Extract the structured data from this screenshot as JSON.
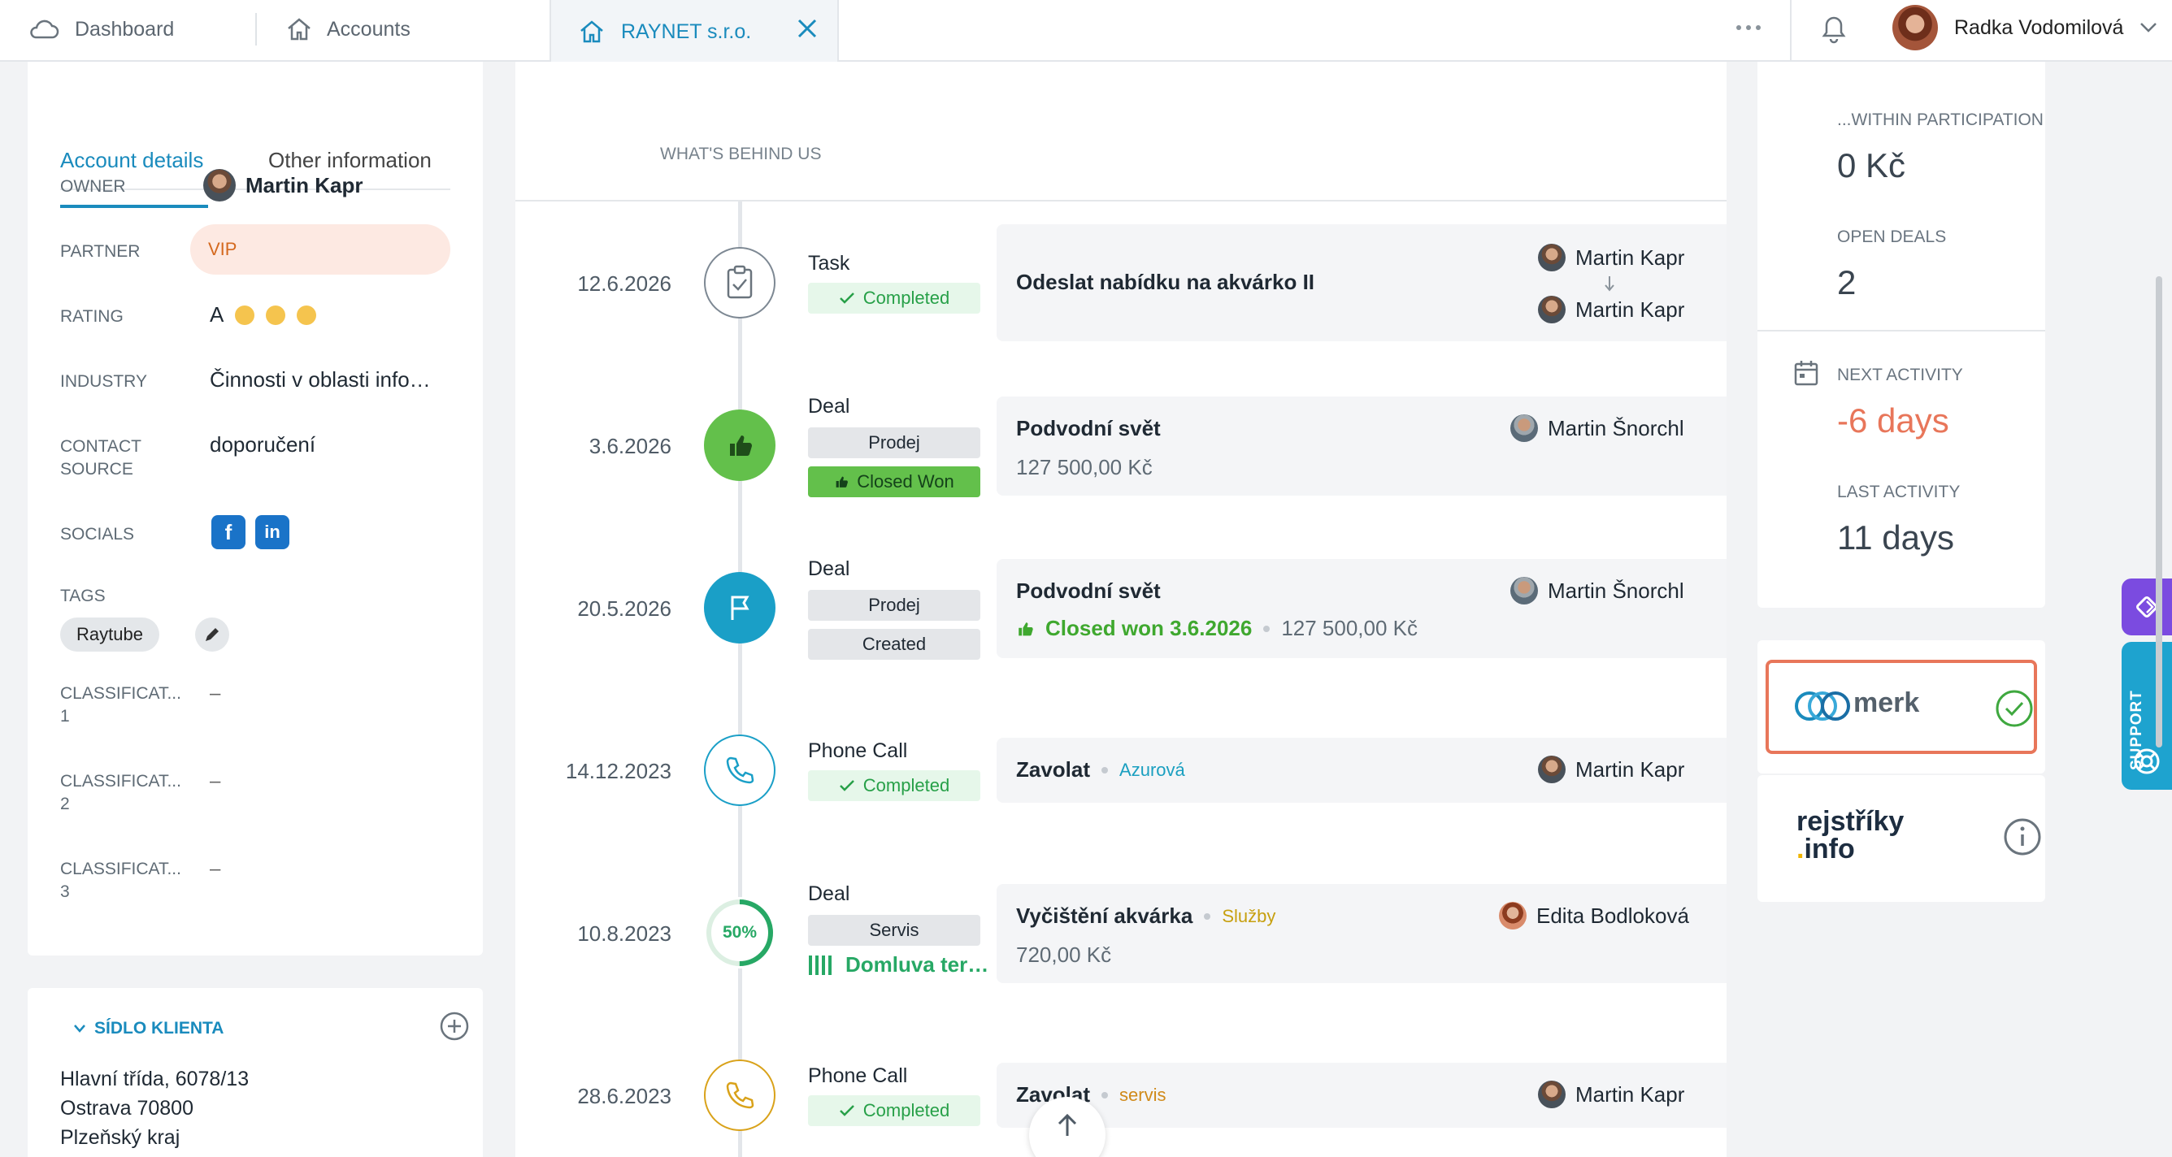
{
  "topbar": {
    "dashboard": "Dashboard",
    "accounts": "Accounts",
    "active_tab": "RAYNET s.r.o.",
    "user_name": "Radka Vodomilová"
  },
  "left": {
    "tabs": [
      "Account details",
      "Other information"
    ],
    "owner_label": "OWNER",
    "owner_value": "Martin Kapr",
    "partner_label": "PARTNER",
    "partner_value": "VIP",
    "rating_label": "RATING",
    "rating_value": "A",
    "industry_label": "INDUSTRY",
    "industry_value": "Činnosti v oblasti info…",
    "contact_source_label_1": "CONTACT",
    "contact_source_label_2": "SOURCE",
    "contact_source_value": "doporučení",
    "socials_label": "SOCIALS",
    "tags_label": "TAGS",
    "tag": "Raytube",
    "classif": [
      {
        "label": "CLASSIFICAT...",
        "num": "1",
        "value": "–"
      },
      {
        "label": "CLASSIFICAT...",
        "num": "2",
        "value": "–"
      },
      {
        "label": "CLASSIFICAT...",
        "num": "3",
        "value": "–"
      }
    ],
    "sidlo_title": "SÍDLO KLIENTA",
    "address": [
      "Hlavní třída, 6078/13",
      "Ostrava 70800",
      "Plzeňský kraj"
    ]
  },
  "timeline": {
    "header": "WHAT'S BEHIND US",
    "items": [
      {
        "date": "12.6.2026",
        "type": "Task",
        "badge": "Completed",
        "title": "Odeslat nabídku na akvárko II",
        "person": "Martin Kapr",
        "person2": "Martin Kapr"
      },
      {
        "date": "3.6.2026",
        "type": "Deal",
        "badge1": "Prodej",
        "badge2": "Closed Won",
        "title": "Podvodní svět",
        "amount": "127 500,00 Kč",
        "person": "Martin Šnorchl"
      },
      {
        "date": "20.5.2026",
        "type": "Deal",
        "badge1": "Prodej",
        "badge2": "Created",
        "title": "Podvodní svět",
        "status": "Closed won 3.6.2026",
        "amount": "127 500,00 Kč",
        "person": "Martin Šnorchl"
      },
      {
        "date": "14.12.2023",
        "type": "Phone Call",
        "badge": "Completed",
        "title": "Zavolat",
        "category": "Azurová",
        "person": "Martin Kapr"
      },
      {
        "date": "10.8.2023",
        "type": "Deal",
        "progress": "50%",
        "badge1": "Servis",
        "stage": "Domluva ter…",
        "title": "Vyčištění akvárka",
        "category": "Služby",
        "amount": "720,00 Kč",
        "person": "Edita Bodloková"
      },
      {
        "date": "28.6.2023",
        "type": "Phone Call",
        "badge": "Completed",
        "title": "Zavolat",
        "category": "servis",
        "person": "Martin Kapr"
      }
    ]
  },
  "right": {
    "within_label": "...WITHIN PARTICIPATION",
    "within_value": "0 Kč",
    "open_deals_label": "OPEN DEALS",
    "open_deals_value": "2",
    "next_activity_label": "NEXT ACTIVITY",
    "next_activity_value": "-6 days",
    "last_activity_label": "LAST ACTIVITY",
    "last_activity_value": "11 days",
    "merk": "merk",
    "rejstriky_1": "rejstříky",
    "rejstriky_2": "info",
    "support": "SUPPORT"
  },
  "colors": {
    "accent": "#1a8bbd",
    "won": "#63c04b",
    "danger": "#e8765a"
  }
}
